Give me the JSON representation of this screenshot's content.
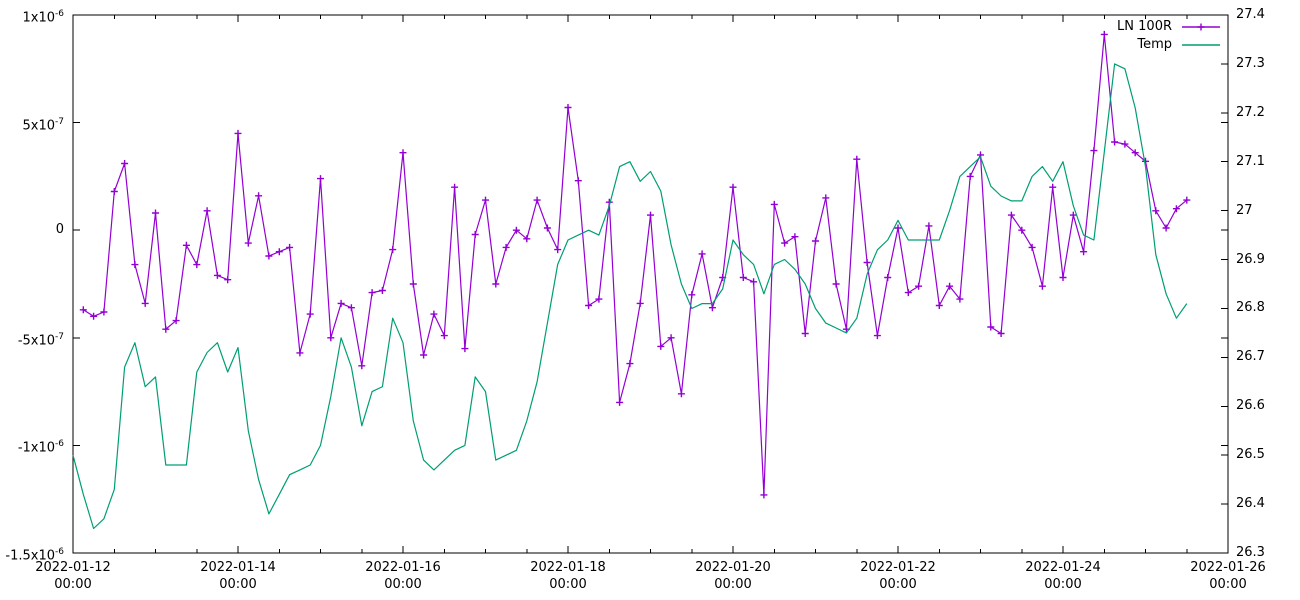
{
  "chart_data": {
    "type": "line",
    "title": "",
    "background_color": "#ffffff",
    "frame_color": "#000000",
    "legend_position": "top-right-inside",
    "x_axis": {
      "start": "2022-01-12 00:00",
      "end": "2022-01-26 00:00",
      "span_hours": 336,
      "major_tick_interval_hours": 48,
      "minor_tick_interval_hours": 12,
      "major_ticks": [
        {
          "date": "2022-01-12",
          "time": "00:00"
        },
        {
          "date": "2022-01-14",
          "time": "00:00"
        },
        {
          "date": "2022-01-16",
          "time": "00:00"
        },
        {
          "date": "2022-01-18",
          "time": "00:00"
        },
        {
          "date": "2022-01-20",
          "time": "00:00"
        },
        {
          "date": "2022-01-22",
          "time": "00:00"
        },
        {
          "date": "2022-01-24",
          "time": "00:00"
        },
        {
          "date": "2022-01-26",
          "time": "00:00"
        }
      ]
    },
    "y_left_axis": {
      "min": -1.5e-06,
      "max": 1e-06,
      "tick_values": [
        1e-06,
        5e-07,
        0,
        -5e-07,
        -1e-06,
        -1.5e-06
      ],
      "tick_labels": [
        "1x10^-6",
        "5x10^-7",
        "0",
        "-5x10^-7",
        "-1x10^-6",
        "-1.5x10^-6"
      ]
    },
    "y_right_axis": {
      "min": 26.3,
      "max": 27.4,
      "tick_values": [
        27.4,
        27.3,
        27.2,
        27.1,
        27.0,
        26.9,
        26.8,
        26.7,
        26.6,
        26.5,
        26.4,
        26.3
      ],
      "tick_labels": [
        "27.4",
        "27.3",
        "27.2",
        "27.1",
        "27",
        "26.9",
        "26.8",
        "26.7",
        "26.6",
        "26.5",
        "26.4",
        "26.3"
      ]
    },
    "series": [
      {
        "name": "LN 100R",
        "color": "#9400d3",
        "marker": "plus",
        "y_axis": "left",
        "t_start_hours": 3,
        "t_step_hours": 3,
        "value_scale": 1e-07,
        "values": [
          -3.7,
          -4.0,
          -3.8,
          1.8,
          3.1,
          -1.6,
          -3.4,
          0.8,
          -4.6,
          -4.2,
          -0.7,
          -1.6,
          0.9,
          -2.1,
          -2.3,
          4.5,
          -0.6,
          1.6,
          -1.2,
          -1.0,
          -0.8,
          -5.7,
          -3.9,
          2.4,
          -5.0,
          -3.4,
          -3.6,
          -6.3,
          -2.9,
          -2.8,
          -0.9,
          3.6,
          -2.5,
          -5.8,
          -3.9,
          -4.9,
          2.0,
          -5.5,
          -0.2,
          1.4,
          -2.5,
          -0.8,
          0.0,
          -0.4,
          1.4,
          0.1,
          -0.9,
          5.7,
          2.3,
          -3.5,
          -3.2,
          1.3,
          -8.0,
          -6.2,
          -3.4,
          0.7,
          -5.4,
          -5.0,
          -7.6,
          -3.0,
          -1.1,
          -3.6,
          -2.2,
          2.0,
          -2.2,
          -2.4,
          -12.3,
          1.2,
          -0.6,
          -0.3,
          -4.8,
          -0.5,
          1.5,
          -2.5,
          -4.6,
          3.3,
          -1.5,
          -4.9,
          -2.2,
          0.1,
          -2.9,
          -2.6,
          0.2,
          -3.5,
          -2.6,
          -3.2,
          2.5,
          3.5,
          -4.5,
          -4.8,
          0.7,
          0.0,
          -0.8,
          -2.6,
          2.0,
          -2.2,
          0.7,
          -1.0,
          3.7,
          9.1,
          4.1,
          4.0,
          3.6,
          3.2,
          0.9,
          0.1,
          1.0,
          1.4
        ]
      },
      {
        "name": "Temp",
        "color": "#009e73",
        "marker": "none",
        "y_axis": "right",
        "t_start_hours": 0,
        "t_step_hours": 3,
        "value_scale": 1,
        "values": [
          26.5,
          26.42,
          26.35,
          26.37,
          26.43,
          26.68,
          26.73,
          26.64,
          26.66,
          26.48,
          26.48,
          26.48,
          26.67,
          26.71,
          26.73,
          26.67,
          26.72,
          26.55,
          26.45,
          26.38,
          26.42,
          26.46,
          26.47,
          26.48,
          26.52,
          26.62,
          26.74,
          26.68,
          26.56,
          26.63,
          26.64,
          26.78,
          26.73,
          26.57,
          26.49,
          26.47,
          26.49,
          26.51,
          26.52,
          26.66,
          26.63,
          26.49,
          26.5,
          26.51,
          26.57,
          26.65,
          26.77,
          26.89,
          26.94,
          26.95,
          26.96,
          26.95,
          27.01,
          27.09,
          27.1,
          27.06,
          27.08,
          27.04,
          26.93,
          26.85,
          26.8,
          26.81,
          26.81,
          26.84,
          26.94,
          26.91,
          26.89,
          26.83,
          26.89,
          26.9,
          26.88,
          26.85,
          26.8,
          26.77,
          26.76,
          26.75,
          26.78,
          26.87,
          26.92,
          26.94,
          26.98,
          26.94,
          26.94,
          26.94,
          26.94,
          27.0,
          27.07,
          27.09,
          27.11,
          27.05,
          27.03,
          27.02,
          27.02,
          27.07,
          27.09,
          27.06,
          27.1,
          27.01,
          26.95,
          26.94,
          27.12,
          27.3,
          27.29,
          27.21,
          27.09,
          26.91,
          26.83,
          26.78,
          26.81
        ]
      }
    ]
  }
}
